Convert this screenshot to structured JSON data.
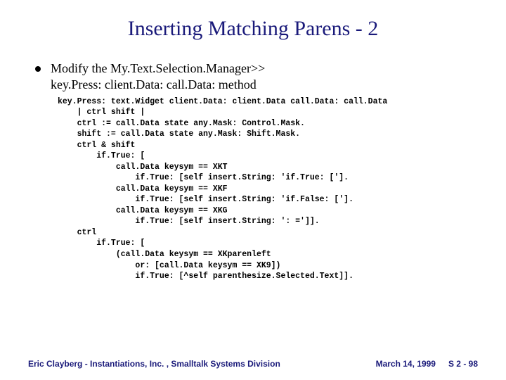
{
  "title": "Inserting Matching Parens - 2",
  "bullet": {
    "line1": "Modify the My.Text.Selection.Manager>>",
    "line2": "key.Press: client.Data: call.Data: method"
  },
  "code": "key.Press: text.Widget client.Data: client.Data call.Data: call.Data\n    | ctrl shift |\n    ctrl := call.Data state any.Mask: Control.Mask.\n    shift := call.Data state any.Mask: Shift.Mask.\n    ctrl & shift\n        if.True: [\n            call.Data keysym == XKT\n                if.True: [self insert.String: 'if.True: ['].\n            call.Data keysym == XKF\n                if.True: [self insert.String: 'if.False: ['].\n            call.Data keysym == XKG\n                if.True: [self insert.String: ': =']].\n    ctrl\n        if.True: [\n            (call.Data keysym == XKparenleft\n                or: [call.Data keysym == XK9])\n                if.True: [^self parenthesize.Selected.Text]].",
  "footer": {
    "left": "Eric Clayberg - Instantiations, Inc. , Smalltalk Systems Division",
    "mid": "March 14, 1999",
    "right": "S 2 - 98"
  },
  "colors": {
    "title": "#1a1a7a",
    "footer": "#1a1a7a",
    "text": "#000000",
    "background": "#ffffff"
  }
}
